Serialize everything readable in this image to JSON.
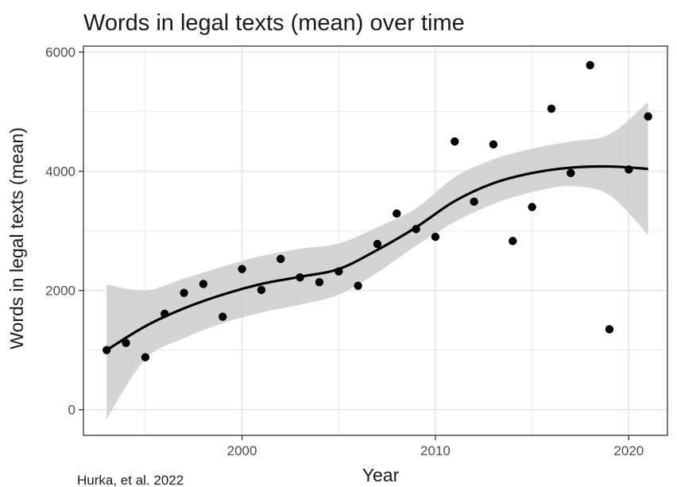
{
  "chart_data": {
    "type": "scatter",
    "title": "Words in legal texts (mean) over time",
    "xlabel": "Year",
    "ylabel": "Words in legal texts (mean)",
    "caption": "Hurka, et al. 2022",
    "xlim": [
      1991.8,
      2022.0
    ],
    "ylim": [
      -430,
      6100
    ],
    "x_ticks": [
      2000,
      2010,
      2020
    ],
    "y_ticks": [
      0,
      2000,
      4000,
      6000
    ],
    "grid": true,
    "legend": "none",
    "colors": {
      "points": "#000000",
      "smooth": "#000000",
      "ribbon": "#cccccc",
      "grid": "#e6e6e6",
      "panel_border": "#333333"
    },
    "points": [
      {
        "x": 1993,
        "y": 1000
      },
      {
        "x": 1994,
        "y": 1120
      },
      {
        "x": 1995,
        "y": 880
      },
      {
        "x": 1996,
        "y": 1610
      },
      {
        "x": 1997,
        "y": 1960
      },
      {
        "x": 1998,
        "y": 2110
      },
      {
        "x": 1999,
        "y": 1560
      },
      {
        "x": 2000,
        "y": 2360
      },
      {
        "x": 2001,
        "y": 2010
      },
      {
        "x": 2002,
        "y": 2530
      },
      {
        "x": 2003,
        "y": 2220
      },
      {
        "x": 2004,
        "y": 2140
      },
      {
        "x": 2005,
        "y": 2320
      },
      {
        "x": 2006,
        "y": 2080
      },
      {
        "x": 2007,
        "y": 2780
      },
      {
        "x": 2008,
        "y": 3290
      },
      {
        "x": 2009,
        "y": 3030
      },
      {
        "x": 2010,
        "y": 2900
      },
      {
        "x": 2011,
        "y": 4500
      },
      {
        "x": 2012,
        "y": 3490
      },
      {
        "x": 2013,
        "y": 4450
      },
      {
        "x": 2014,
        "y": 2830
      },
      {
        "x": 2015,
        "y": 3400
      },
      {
        "x": 2016,
        "y": 5050
      },
      {
        "x": 2017,
        "y": 3970
      },
      {
        "x": 2018,
        "y": 5780
      },
      {
        "x": 2019,
        "y": 1350
      },
      {
        "x": 2020,
        "y": 4030
      },
      {
        "x": 2021,
        "y": 4920
      }
    ],
    "smooth": {
      "x": [
        1993,
        1995,
        1997,
        1999,
        2001,
        2003,
        2005,
        2007,
        2009,
        2011,
        2013,
        2015,
        2017,
        2019,
        2021
      ],
      "y": [
        1000,
        1400,
        1700,
        1930,
        2110,
        2230,
        2360,
        2680,
        3060,
        3500,
        3800,
        3970,
        4060,
        4080,
        4040
      ],
      "lower": [
        -150,
        850,
        1200,
        1450,
        1630,
        1760,
        1930,
        2300,
        2750,
        3150,
        3450,
        3650,
        3750,
        3600,
        2930
      ],
      "upper": [
        2100,
        2000,
        2200,
        2400,
        2580,
        2700,
        2790,
        3060,
        3380,
        3900,
        4200,
        4380,
        4500,
        4620,
        5160
      ]
    }
  }
}
